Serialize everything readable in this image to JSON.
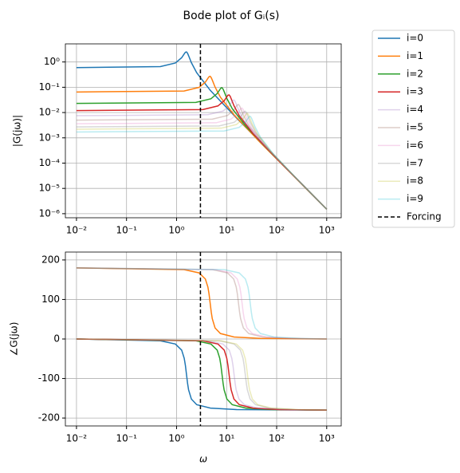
{
  "chart_data": [
    {
      "type": "line",
      "title": "Bode plot of Gᵢ(s)",
      "ylabel": "|G(jω)|",
      "xscale": "log",
      "yscale": "log",
      "grid": true,
      "xlim": [
        0.006,
        1950
      ],
      "ylim": [
        6.9e-07,
        5.2
      ],
      "xticks": [
        {
          "value": 0.01,
          "label": "10⁻²"
        },
        {
          "value": 0.1,
          "label": "10⁻¹"
        },
        {
          "value": 1,
          "label": "10⁰"
        },
        {
          "value": 10,
          "label": "10¹"
        },
        {
          "value": 100,
          "label": "10²"
        },
        {
          "value": 1000,
          "label": "10³"
        }
      ],
      "yticks": [
        {
          "value": 1e-06,
          "label": "10⁻⁶"
        },
        {
          "value": 1e-05,
          "label": "10⁻⁵"
        },
        {
          "value": 0.0001,
          "label": "10⁻⁴"
        },
        {
          "value": 0.001,
          "label": "10⁻³"
        },
        {
          "value": 0.01,
          "label": "10⁻²"
        },
        {
          "value": 0.1,
          "label": "10⁻¹"
        },
        {
          "value": 1,
          "label": "10⁰"
        }
      ],
      "forcing": {
        "name": "Forcing",
        "x": 3,
        "color": "#000000"
      },
      "series": [
        {
          "name": "i=0",
          "color": "#1f77b4",
          "alpha": 1,
          "x": [
            0.01,
            0.474,
            0.948,
            1.264,
            1.422,
            1.501,
            1.58,
            1.659,
            1.738,
            1.975,
            2.528,
            4.74,
            15.8,
            1000
          ],
          "values": [
            0.6,
            0.657,
            0.914,
            1.471,
            2.086,
            2.418,
            2.5,
            2.206,
            1.779,
            0.941,
            0.373,
            0.0747,
            0.00606,
            1.5e-06
          ]
        },
        {
          "name": "i=1",
          "color": "#ff7f0e",
          "alpha": 1,
          "x": [
            0.01,
            1.41,
            2.82,
            3.76,
            4.23,
            4.465,
            4.7,
            4.935,
            5.17,
            5.875,
            7.52,
            14.1,
            47,
            1000
          ],
          "values": [
            0.065,
            0.0712,
            0.0991,
            0.1593,
            0.226,
            0.262,
            0.271,
            0.239,
            0.193,
            0.102,
            0.0405,
            0.00809,
            0.000657,
            1.5e-06
          ]
        },
        {
          "name": "i=2",
          "color": "#2ca02c",
          "alpha": 1,
          "x": [
            0.01,
            2.43,
            4.86,
            6.48,
            7.29,
            7.695,
            8.1,
            8.505,
            8.91,
            10.125,
            12.96,
            24.3,
            81,
            1000
          ],
          "values": [
            0.023,
            0.0252,
            0.0351,
            0.0564,
            0.0799,
            0.0927,
            0.0958,
            0.0845,
            0.0682,
            0.0361,
            0.0143,
            0.00286,
            0.000232,
            1.5e-06
          ]
        },
        {
          "name": "i=3",
          "color": "#d62728",
          "alpha": 1,
          "x": [
            0.01,
            3.36,
            6.72,
            8.96,
            10.08,
            10.64,
            11.2,
            11.76,
            12.32,
            14,
            17.92,
            33.6,
            112,
            1000
          ],
          "values": [
            0.012,
            0.01314,
            0.01829,
            0.0294,
            0.0417,
            0.0484,
            0.05,
            0.0441,
            0.0356,
            0.01883,
            0.00747,
            0.001494,
            0.000121,
            1.5e-06
          ]
        },
        {
          "name": "i=4",
          "color": "#9467bd",
          "alpha": 0.3,
          "x": [
            0.01,
            4.23,
            8.46,
            11.28,
            12.69,
            13.395,
            14.1,
            14.805,
            15.51,
            17.625,
            22.56,
            42.3,
            141,
            1000
          ],
          "values": [
            0.0075,
            0.00822,
            0.01143,
            0.01838,
            0.02607,
            0.03023,
            0.03125,
            0.02757,
            0.02224,
            0.01177,
            0.00467,
            0.000934,
            7.58e-05,
            1.5e-06
          ]
        },
        {
          "name": "i=5",
          "color": "#8c564b",
          "alpha": 0.3,
          "x": [
            0.01,
            5.19,
            10.38,
            13.84,
            15.57,
            16.435,
            17.3,
            18.165,
            19.03,
            21.625,
            27.68,
            51.9,
            173,
            1000
          ],
          "values": [
            0.005,
            0.00548,
            0.00762,
            0.01226,
            0.01738,
            0.02015,
            0.02084,
            0.01838,
            0.01483,
            0.00785,
            0.00311,
            0.000623,
            5.05e-05,
            1.5e-06
          ]
        },
        {
          "name": "i=6",
          "color": "#e377c2",
          "alpha": 0.3,
          "x": [
            0.01,
            6.12,
            12.24,
            16.32,
            18.36,
            19.38,
            20.4,
            21.42,
            22.44,
            25.5,
            32.64,
            61.2,
            204,
            1000
          ],
          "values": [
            0.0036,
            0.00394,
            0.00549,
            0.00882,
            0.01251,
            0.01451,
            0.015,
            0.01323,
            0.01067,
            0.00565,
            0.00224,
            0.000448,
            3.64e-05,
            1.5e-06
          ]
        },
        {
          "name": "i=7",
          "color": "#7f7f7f",
          "alpha": 0.3,
          "x": [
            0.01,
            7.08,
            14.16,
            18.88,
            21.24,
            22.42,
            23.6,
            24.78,
            25.96,
            29.5,
            37.76,
            70.8,
            236,
            1000
          ],
          "values": [
            0.0027,
            0.00296,
            0.00411,
            0.00662,
            0.00939,
            0.01088,
            0.01125,
            0.00993,
            0.008,
            0.00424,
            0.00168,
            0.000336,
            2.73e-05,
            1.5e-06
          ]
        },
        {
          "name": "i=8",
          "color": "#bcbd22",
          "alpha": 0.3,
          "x": [
            0.01,
            7.83,
            15.66,
            20.88,
            23.49,
            24.795,
            26.1,
            27.405,
            28.71,
            32.625,
            41.76,
            78.3,
            261,
            1000
          ],
          "values": [
            0.0022,
            0.00241,
            0.00335,
            0.00539,
            0.00765,
            0.00887,
            0.00917,
            0.00809,
            0.00652,
            0.00345,
            0.00137,
            0.000274,
            2.22e-05,
            1.5e-06
          ]
        },
        {
          "name": "i=9",
          "color": "#17becf",
          "alpha": 0.3,
          "x": [
            0.01,
            8.91,
            17.82,
            23.76,
            26.73,
            28.215,
            29.7,
            31.185,
            32.67,
            37.125,
            47.52,
            89.1,
            297,
            1000
          ],
          "values": [
            0.0017,
            0.00186,
            0.00259,
            0.00417,
            0.00591,
            0.00685,
            0.00708,
            0.00625,
            0.00504,
            0.00267,
            0.00106,
            0.000212,
            1.72e-05,
            1.5e-06
          ]
        }
      ]
    },
    {
      "type": "line",
      "ylabel": "∠G(jω)",
      "xlabel": "ω",
      "xscale": "log",
      "yscale": "linear",
      "grid": true,
      "xlim": [
        0.006,
        1950
      ],
      "ylim": [
        -220,
        220
      ],
      "xticks": [
        {
          "value": 0.01,
          "label": "10⁻²"
        },
        {
          "value": 0.1,
          "label": "10⁻¹"
        },
        {
          "value": 1,
          "label": "10⁰"
        },
        {
          "value": 10,
          "label": "10¹"
        },
        {
          "value": 100,
          "label": "10²"
        },
        {
          "value": 1000,
          "label": "10³"
        }
      ],
      "yticks": [
        -200,
        -100,
        0,
        100,
        200
      ],
      "forcing": {
        "x": 3,
        "color": "#000000"
      },
      "series": [
        {
          "color": "#1f77b4",
          "alpha": 1,
          "x": [
            0.01,
            0.474,
            0.948,
            1.264,
            1.422,
            1.501,
            1.58,
            1.659,
            1.738,
            1.975,
            2.528,
            4.74,
            15.8,
            1000
          ],
          "values": [
            0,
            -4.5,
            -12.7,
            -28.1,
            -48.7,
            -66.8,
            -90,
            -112.1,
            -128.5,
            -151.9,
            -166.2,
            -174.9,
            -178.6,
            -180
          ]
        },
        {
          "color": "#ff7f0e",
          "alpha": 1,
          "x": [
            0.01,
            1.41,
            2.82,
            3.76,
            4.23,
            4.465,
            4.7,
            4.935,
            5.17,
            5.875,
            7.52,
            14.1,
            47,
            1000
          ],
          "values": [
            180,
            175.5,
            167.3,
            151.9,
            131.3,
            113.2,
            90,
            67.9,
            51.5,
            28.1,
            13.8,
            5.1,
            1.4,
            0
          ]
        },
        {
          "color": "#2ca02c",
          "alpha": 1,
          "x": [
            0.01,
            2.43,
            4.86,
            6.48,
            7.29,
            7.695,
            8.1,
            8.505,
            8.91,
            10.125,
            12.96,
            24.3,
            81,
            1000
          ],
          "values": [
            0,
            -4.5,
            -12.7,
            -28.1,
            -48.7,
            -66.8,
            -90,
            -112.1,
            -128.5,
            -151.9,
            -166.2,
            -174.9,
            -178.6,
            -180
          ]
        },
        {
          "color": "#d62728",
          "alpha": 1,
          "x": [
            0.01,
            3.36,
            6.72,
            8.96,
            10.08,
            10.64,
            11.2,
            11.76,
            12.32,
            14,
            17.92,
            33.6,
            112,
            1000
          ],
          "values": [
            0,
            -4.5,
            -12.7,
            -28.1,
            -48.7,
            -66.8,
            -90,
            -112.1,
            -128.5,
            -151.9,
            -166.2,
            -174.9,
            -178.6,
            -180
          ]
        },
        {
          "color": "#9467bd",
          "alpha": 0.3,
          "x": [
            0.01,
            4.23,
            8.46,
            11.28,
            12.69,
            13.395,
            14.1,
            14.805,
            15.51,
            17.625,
            22.56,
            42.3,
            141,
            1000
          ],
          "values": [
            0,
            -4.5,
            -12.7,
            -28.1,
            -48.7,
            -66.8,
            -90,
            -112.1,
            -128.5,
            -151.9,
            -166.2,
            -174.9,
            -178.6,
            -180
          ]
        },
        {
          "color": "#8c564b",
          "alpha": 0.3,
          "x": [
            0.01,
            5.19,
            10.38,
            13.84,
            15.57,
            16.435,
            17.3,
            18.165,
            19.03,
            21.625,
            27.68,
            51.9,
            173,
            1000
          ],
          "values": [
            180,
            175.5,
            167.3,
            151.9,
            131.3,
            113.2,
            90,
            67.9,
            51.5,
            28.1,
            13.8,
            5.1,
            1.4,
            0
          ]
        },
        {
          "color": "#e377c2",
          "alpha": 0.3,
          "x": [
            0.01,
            6.12,
            12.24,
            16.32,
            18.36,
            19.38,
            20.4,
            21.42,
            22.44,
            25.5,
            32.64,
            61.2,
            204,
            1000
          ],
          "values": [
            180,
            175.5,
            167.3,
            151.9,
            131.3,
            113.2,
            90,
            67.9,
            51.5,
            28.1,
            13.8,
            5.1,
            1.4,
            0
          ]
        },
        {
          "color": "#7f7f7f",
          "alpha": 0.3,
          "x": [
            0.01,
            7.08,
            14.16,
            18.88,
            21.24,
            22.42,
            23.6,
            24.78,
            25.96,
            29.5,
            37.76,
            70.8,
            236,
            1000
          ],
          "values": [
            0,
            -4.5,
            -12.7,
            -28.1,
            -48.7,
            -66.8,
            -90,
            -112.1,
            -128.5,
            -151.9,
            -166.2,
            -174.9,
            -178.6,
            -180
          ]
        },
        {
          "color": "#bcbd22",
          "alpha": 0.3,
          "x": [
            0.01,
            7.83,
            15.66,
            20.88,
            23.49,
            24.795,
            26.1,
            27.405,
            28.71,
            32.625,
            41.76,
            78.3,
            261,
            1000
          ],
          "values": [
            0,
            -4.5,
            -12.7,
            -28.1,
            -48.7,
            -66.8,
            -90,
            -112.1,
            -128.5,
            -151.9,
            -166.2,
            -174.9,
            -178.6,
            -180
          ]
        },
        {
          "color": "#17becf",
          "alpha": 0.3,
          "x": [
            0.01,
            8.91,
            17.82,
            23.76,
            26.73,
            28.215,
            29.7,
            31.185,
            32.67,
            37.125,
            47.52,
            89.1,
            297,
            1000
          ],
          "values": [
            180,
            175.5,
            167.3,
            151.9,
            131.3,
            113.2,
            90,
            67.9,
            51.5,
            28.1,
            13.8,
            5.1,
            1.4,
            0
          ]
        }
      ]
    }
  ]
}
